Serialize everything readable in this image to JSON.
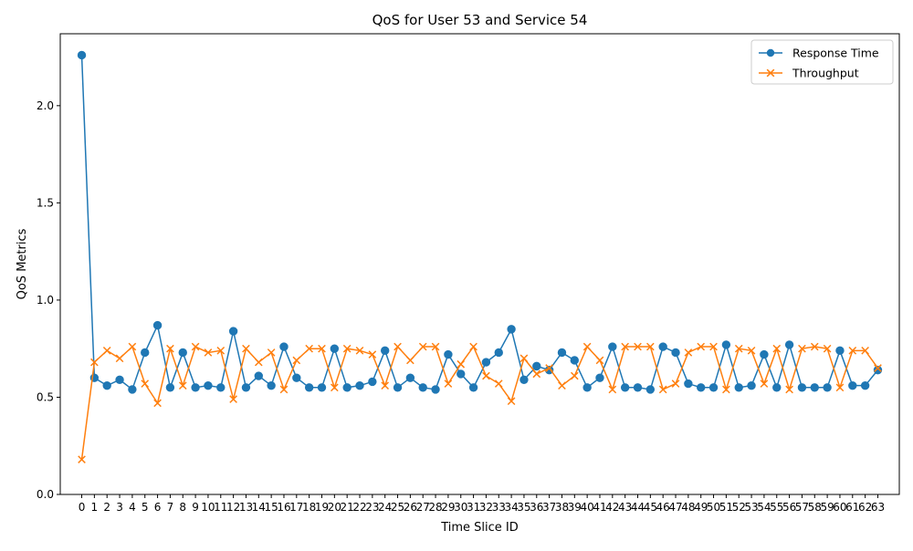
{
  "chart_data": {
    "type": "line",
    "title": "QoS for User 53 and Service 54",
    "xlabel": "Time Slice ID",
    "ylabel": "QoS Metrics",
    "ylim": [
      0.0,
      2.37
    ],
    "yticks": [
      "0.0",
      "0.5",
      "1.0",
      "1.5",
      "2.0"
    ],
    "x": [
      0,
      1,
      2,
      3,
      4,
      5,
      6,
      7,
      8,
      9,
      10,
      11,
      12,
      13,
      14,
      15,
      16,
      17,
      18,
      19,
      20,
      21,
      22,
      23,
      24,
      25,
      26,
      27,
      28,
      29,
      30,
      31,
      32,
      33,
      34,
      35,
      36,
      37,
      38,
      39,
      40,
      41,
      42,
      43,
      44,
      45,
      46,
      47,
      48,
      49,
      50,
      51,
      52,
      53,
      54,
      55,
      56,
      57,
      58,
      59,
      60,
      61,
      62,
      63
    ],
    "legend_position": "top-right",
    "grid": false,
    "series": [
      {
        "name": "Response Time",
        "color": "#1f77b4",
        "marker": "circle",
        "values": [
          2.26,
          0.6,
          0.56,
          0.59,
          0.54,
          0.73,
          0.87,
          0.55,
          0.73,
          0.55,
          0.56,
          0.55,
          0.84,
          0.55,
          0.61,
          0.56,
          0.76,
          0.6,
          0.55,
          0.55,
          0.75,
          0.55,
          0.56,
          0.58,
          0.74,
          0.55,
          0.6,
          0.55,
          0.54,
          0.72,
          0.62,
          0.55,
          0.68,
          0.73,
          0.85,
          0.59,
          0.66,
          0.64,
          0.73,
          0.69,
          0.55,
          0.6,
          0.76,
          0.55,
          0.55,
          0.54,
          0.76,
          0.73,
          0.57,
          0.55,
          0.55,
          0.77,
          0.55,
          0.56,
          0.72,
          0.55,
          0.77,
          0.55,
          0.55,
          0.55,
          0.74,
          0.56,
          0.56,
          0.64
        ]
      },
      {
        "name": "Throughput",
        "color": "#ff7f0e",
        "marker": "x",
        "values": [
          0.18,
          0.68,
          0.74,
          0.7,
          0.76,
          0.57,
          0.47,
          0.75,
          0.56,
          0.76,
          0.73,
          0.74,
          0.49,
          0.75,
          0.68,
          0.73,
          0.54,
          0.69,
          0.75,
          0.75,
          0.55,
          0.75,
          0.74,
          0.72,
          0.56,
          0.76,
          0.69,
          0.76,
          0.76,
          0.57,
          0.67,
          0.76,
          0.61,
          0.57,
          0.48,
          0.7,
          0.62,
          0.65,
          0.56,
          0.61,
          0.76,
          0.69,
          0.54,
          0.76,
          0.76,
          0.76,
          0.54,
          0.57,
          0.73,
          0.76,
          0.76,
          0.54,
          0.75,
          0.74,
          0.57,
          0.75,
          0.54,
          0.75,
          0.76,
          0.75,
          0.55,
          0.74,
          0.74,
          0.65
        ]
      }
    ]
  }
}
